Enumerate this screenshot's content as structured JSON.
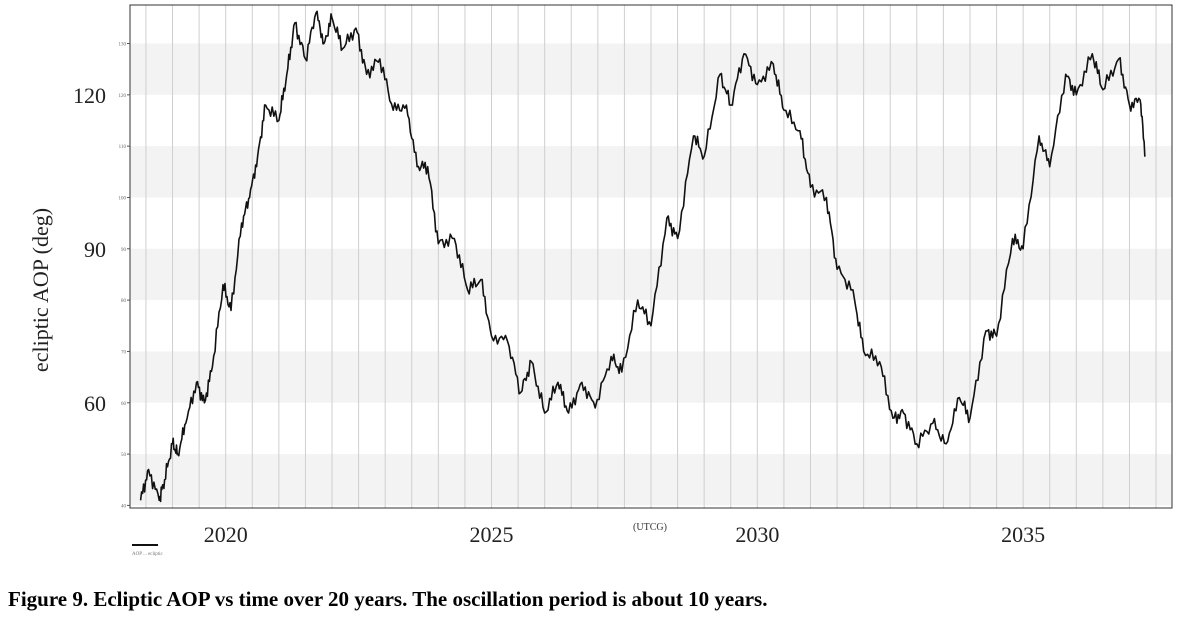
{
  "caption": "Figure 9. Ecliptic AOP vs time over 20 years. The oscillation period is about 10 years.",
  "chart_data": {
    "type": "line",
    "ylabel": "ecliptic AOP (deg)",
    "xlabel": "(UTCG)",
    "legend_text": "AOP ... ecliptic",
    "xlim": [
      2018.2,
      2037.8
    ],
    "ylim": [
      39.5,
      137.5
    ],
    "grid": true,
    "major_y_ticks": [
      60,
      90,
      120
    ],
    "minor_y_ticks": [
      40,
      50,
      60,
      70,
      80,
      90,
      100,
      110,
      120,
      130
    ],
    "x_ticks": [
      2020,
      2025,
      2030,
      2035
    ],
    "series": [
      {
        "name": "",
        "x": [
          2018.4,
          2018.55,
          2018.75,
          2018.85,
          2019.0,
          2019.1,
          2019.25,
          2019.45,
          2019.6,
          2019.75,
          2019.95,
          2020.1,
          2020.3,
          2020.45,
          2020.6,
          2020.75,
          2021.0,
          2021.15,
          2021.3,
          2021.5,
          2021.7,
          2021.85,
          2022.0,
          2022.2,
          2022.45,
          2022.65,
          2022.9,
          2023.15,
          2023.4,
          2023.6,
          2023.8,
          2024.0,
          2024.3,
          2024.55,
          2024.8,
          2025.0,
          2025.3,
          2025.55,
          2025.75,
          2026.0,
          2026.25,
          2026.45,
          2026.7,
          2026.95,
          2027.25,
          2027.45,
          2027.75,
          2028.0,
          2028.3,
          2028.5,
          2028.8,
          2029.0,
          2029.3,
          2029.5,
          2029.75,
          2030.0,
          2030.3,
          2030.5,
          2030.8,
          2031.0,
          2031.3,
          2031.5,
          2031.8,
          2032.0,
          2032.3,
          2032.55,
          2032.75,
          2033.0,
          2033.3,
          2033.55,
          2033.8,
          2034.0,
          2034.3,
          2034.5,
          2034.8,
          2035.0,
          2035.3,
          2035.5,
          2035.8,
          2036.0,
          2036.3,
          2036.5,
          2036.8,
          2037.0,
          2037.2,
          2037.3
        ],
        "y": [
          41,
          47,
          41,
          45,
          52,
          50,
          56,
          64,
          60,
          67,
          83,
          78,
          95,
          100,
          108,
          118,
          115,
          124,
          134,
          127,
          136,
          130,
          135,
          129,
          133,
          124,
          127,
          117,
          118,
          106,
          106,
          91,
          92,
          82,
          84,
          73,
          72,
          62,
          68,
          58,
          64,
          58,
          64,
          59,
          69,
          66,
          80,
          75,
          96,
          92,
          112,
          108,
          124,
          118,
          128,
          122,
          126,
          117,
          113,
          102,
          100,
          86,
          82,
          70,
          68,
          57,
          58,
          52,
          56,
          52,
          61,
          57,
          74,
          73,
          92,
          90,
          112,
          106,
          124,
          120,
          128,
          121,
          127,
          118,
          119,
          108
        ]
      }
    ]
  }
}
